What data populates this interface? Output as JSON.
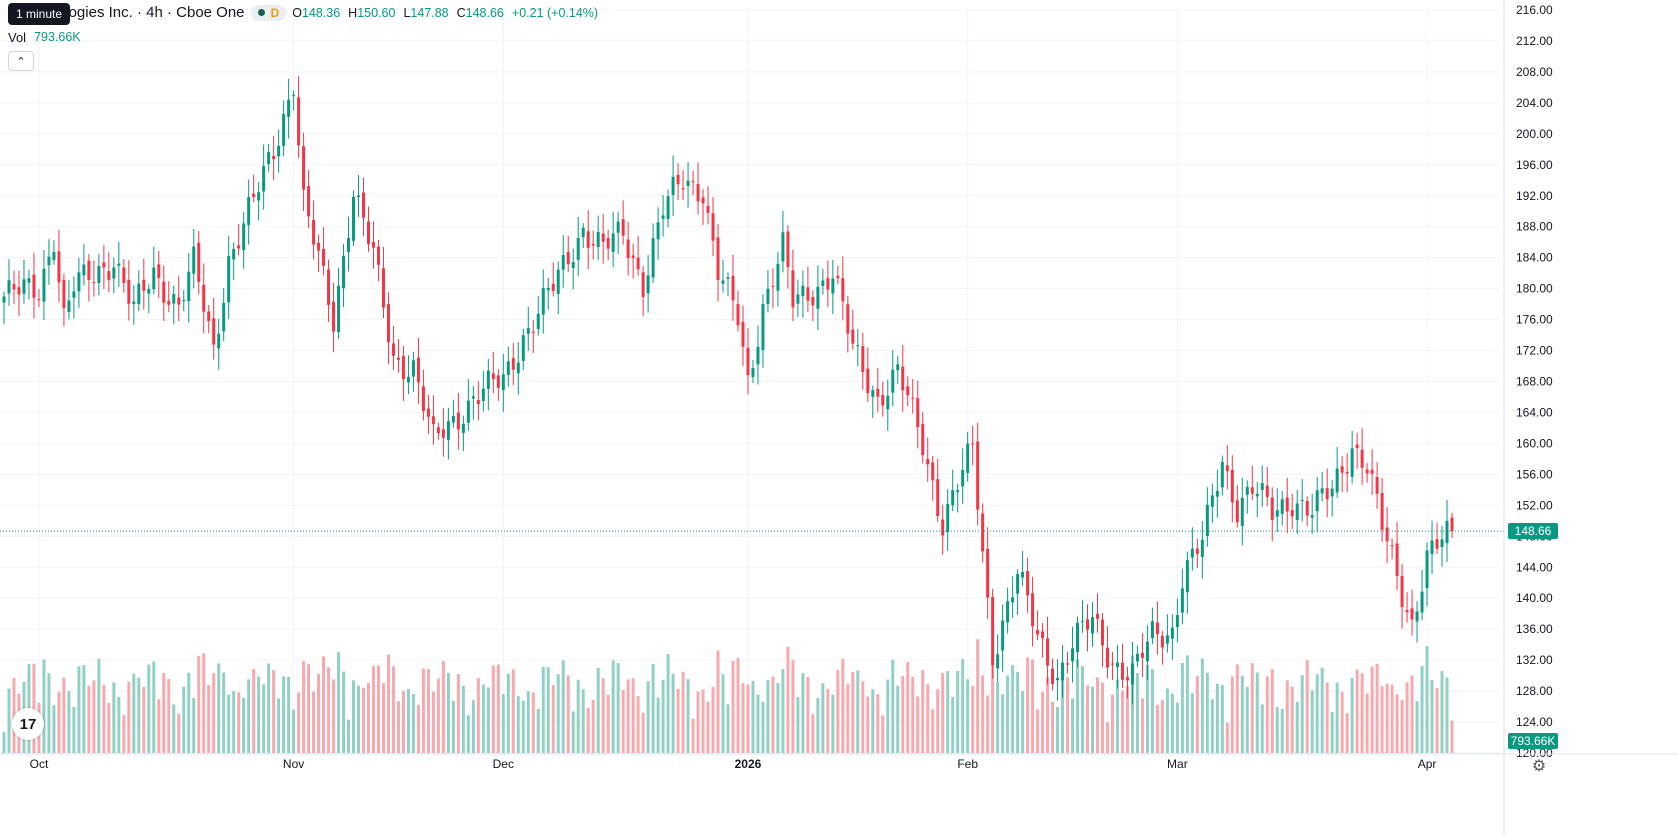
{
  "header": {
    "symbol_title": "r Technologies Inc. · 4h · Cboe One",
    "interval_tooltip": "1 minute",
    "market_badge": "D",
    "ohlc": {
      "o_label": "O",
      "o": "148.36",
      "h_label": "H",
      "h": "150.60",
      "l_label": "L",
      "l": "147.88",
      "c_label": "C",
      "c": "148.66",
      "change": "+0.21 (+0.14%)"
    },
    "volume_label": "Vol",
    "volume_value": "793.66K",
    "collapse_icon": "chevron-up-icon"
  },
  "last_price_tag": "148.66",
  "last_volume_tag": "793.66K",
  "logo_text": "17",
  "colors": {
    "up": "#089981",
    "down": "#f23645",
    "up_vol": "#91d0c4",
    "down_vol": "#f7a9ae",
    "grid": "#f0f3fa",
    "axis_text": "#131722"
  },
  "chart_data": {
    "type": "candlestick",
    "interval": "4h",
    "ylim": [
      120,
      216
    ],
    "y_ticks": [
      "216.00",
      "212.00",
      "208.00",
      "204.00",
      "200.00",
      "196.00",
      "192.00",
      "188.00",
      "184.00",
      "180.00",
      "176.00",
      "172.00",
      "168.00",
      "164.00",
      "160.00",
      "156.00",
      "152.00",
      "148.00",
      "144.00",
      "140.00",
      "136.00",
      "132.00",
      "128.00",
      "124.00",
      "120.00"
    ],
    "x_ticks": [
      {
        "label": "Oct",
        "index": 7
      },
      {
        "label": "Nov",
        "index": 58
      },
      {
        "label": "Dec",
        "index": 100
      },
      {
        "label": "2026",
        "index": 149
      },
      {
        "label": "Feb",
        "index": 193
      },
      {
        "label": "Mar",
        "index": 235
      },
      {
        "label": "Apr",
        "index": 285
      }
    ],
    "last_price": 148.66,
    "anchors": [
      [
        0,
        179
      ],
      [
        7,
        180
      ],
      [
        10,
        187
      ],
      [
        12,
        176
      ],
      [
        14,
        180
      ],
      [
        22,
        184
      ],
      [
        26,
        177
      ],
      [
        30,
        182
      ],
      [
        35,
        178
      ],
      [
        38,
        183
      ],
      [
        42,
        172
      ],
      [
        45,
        184
      ],
      [
        50,
        191
      ],
      [
        54,
        198
      ],
      [
        58,
        207
      ],
      [
        60,
        191
      ],
      [
        66,
        176
      ],
      [
        70,
        193
      ],
      [
        74,
        184
      ],
      [
        78,
        171
      ],
      [
        82,
        170
      ],
      [
        86,
        160
      ],
      [
        90,
        163
      ],
      [
        94,
        166
      ],
      [
        100,
        168
      ],
      [
        104,
        174
      ],
      [
        110,
        180
      ],
      [
        116,
        188
      ],
      [
        120,
        185
      ],
      [
        124,
        187
      ],
      [
        128,
        181
      ],
      [
        132,
        190
      ],
      [
        136,
        194
      ],
      [
        140,
        193
      ],
      [
        143,
        182
      ],
      [
        147,
        176
      ],
      [
        149,
        168
      ],
      [
        152,
        178
      ],
      [
        156,
        185
      ],
      [
        158,
        178
      ],
      [
        162,
        180
      ],
      [
        166,
        182
      ],
      [
        170,
        172
      ],
      [
        175,
        166
      ],
      [
        179,
        169
      ],
      [
        184,
        160
      ],
      [
        188,
        150
      ],
      [
        194,
        159
      ],
      [
        196,
        146
      ],
      [
        198,
        133
      ],
      [
        203,
        143
      ],
      [
        207,
        135
      ],
      [
        211,
        130
      ],
      [
        214,
        134
      ],
      [
        218,
        137
      ],
      [
        222,
        132
      ],
      [
        226,
        130
      ],
      [
        230,
        135
      ],
      [
        234,
        136
      ],
      [
        236,
        143
      ],
      [
        240,
        147
      ],
      [
        244,
        158
      ],
      [
        247,
        152
      ],
      [
        250,
        154
      ],
      [
        254,
        151
      ],
      [
        258,
        153
      ],
      [
        262,
        151
      ],
      [
        266,
        154
      ],
      [
        270,
        160
      ],
      [
        273,
        157
      ],
      [
        276,
        149
      ],
      [
        280,
        141
      ],
      [
        282,
        137
      ],
      [
        285,
        145
      ],
      [
        290,
        148.66
      ]
    ]
  }
}
